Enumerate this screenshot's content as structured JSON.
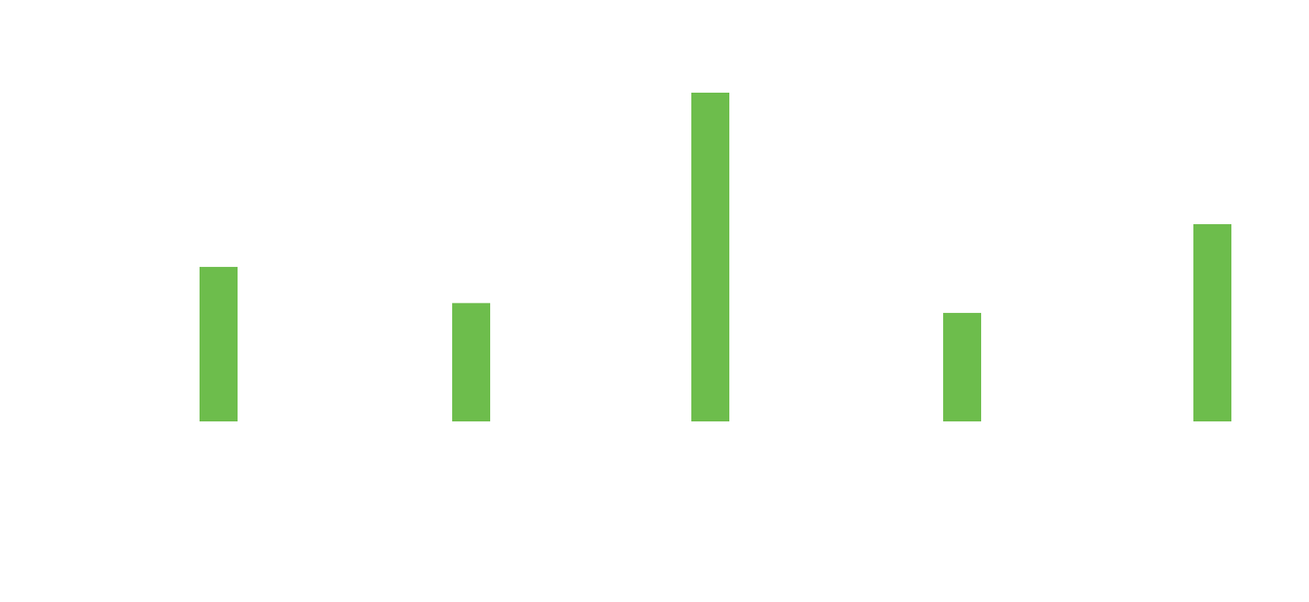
{
  "chart_data": {
    "type": "bar",
    "categories": [
      "",
      "",
      "",
      "",
      ""
    ],
    "values": [
      47,
      36,
      100,
      33,
      60
    ],
    "title": "",
    "xlabel": "",
    "ylabel": "",
    "ylim": [
      0,
      100
    ],
    "grid": false,
    "axes_visible": false,
    "legend": "none",
    "bar_color": "#6dbd4c"
  }
}
